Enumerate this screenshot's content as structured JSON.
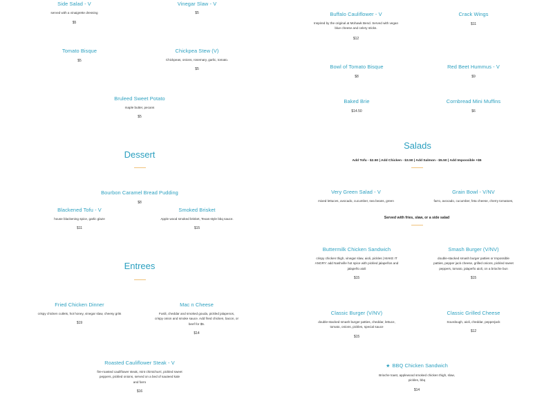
{
  "left_column": [
    {
      "id": "side-salad",
      "name": "Side Salad - V",
      "desc": "served with a vinaigrette dressing",
      "price": "$5"
    },
    {
      "id": "vinegar-slaw",
      "name": "Vinegar Slaw - V",
      "desc": "",
      "price": "$5"
    },
    {
      "id": "tomato-bisque",
      "name": "Tomato Bisque",
      "desc": "",
      "price": "$5"
    },
    {
      "id": "chickpea-stew",
      "name": "Chickpea Stew (V)",
      "desc": "Chickpeas, onions, rosemary, garlic, tomato.",
      "price": "$5"
    },
    {
      "id": "bruleed-sweet-potato",
      "name": "Bruleed Sweet Potato",
      "desc": "maple butter, pecans",
      "price": "$5"
    },
    {
      "id": "bourbon-pudding",
      "name": "Bourbon Caramel Bread Pudding",
      "desc": "",
      "price": "$8"
    },
    {
      "id": "blackened-tofu",
      "name": "Blackened Tofu - V",
      "desc": "house blackening spice, garlic glaze",
      "price": "$11"
    },
    {
      "id": "smoked-brisket",
      "name": "Smoked Brisket",
      "desc": "Apple wood smoked brisket, Texas-style bbq sauce.",
      "price": "$15"
    },
    {
      "id": "fried-chicken-dinner",
      "name": "Fried Chicken Dinner",
      "desc": "crispy chicken cutlets, hot honey, vinegar slaw, cheesy grits",
      "price": "$19"
    },
    {
      "id": "mac-n-cheese",
      "name": "Mac n Cheese",
      "desc": "Fusili, cheddar and smoked gouda, pickled jalapenos, crispy onion and smoke sauce. Add fried chicken, bacon, or beef for $5.",
      "price": "$14"
    },
    {
      "id": "roasted-cauliflower-steak",
      "name": "Roasted Cauliflower Steak - V",
      "desc": "fire-roasted cauliflower steak, mint chimichurri, pickled sweet peppers, pickled onions, served on a bed of sauteed kale and farro",
      "price": "$16"
    }
  ],
  "right_column": [
    {
      "id": "buffalo-cauliflower",
      "name": "Buffalo Cauliflower - V",
      "desc": "Inspired by the original at Mohawk Bend. Served with vegan blue cheese and celery sticks.",
      "price": "$12"
    },
    {
      "id": "crack-wings",
      "name": "Crack Wings",
      "desc": "",
      "price": "$11"
    },
    {
      "id": "bowl-tomato-bisque",
      "name": "Bowl of Tomato Bisque",
      "desc": "",
      "price": "$8"
    },
    {
      "id": "red-beet-hummus",
      "name": "Red Beet Hummus - V",
      "desc": "",
      "price": "$9"
    },
    {
      "id": "baked-brie",
      "name": "Baked Brie",
      "desc": "",
      "price": "$14.50"
    },
    {
      "id": "cornbread-muffins",
      "name": "Cornbread Mini Muffins",
      "desc": "",
      "price": "$6"
    },
    {
      "id": "very-green-salad",
      "name": "Very Green Salad - V",
      "desc": "mixed lettuces, avocado, cucumber, sea beans, green",
      "price": ""
    },
    {
      "id": "grain-bowl",
      "name": "Grain Bowl - V/NV",
      "desc": "farro, avocado, cucumber, feta cheese, cherry tomatoes,",
      "price": ""
    },
    {
      "id": "buttermilk-chicken-sandwich",
      "name": "Buttermilk Chicken Sandwich",
      "desc": "crispy chicken thigh, vinegar slaw, aioli, pickles | MAKE IT ANGRY: add Nashville hot spice with pickled jalapeños and jalapeño aioli",
      "price": "$15"
    },
    {
      "id": "smash-burger",
      "name": "Smash Burger (V/NV)",
      "desc": "double-stacked smash burger patties or Impossible patties, pepper jack cheese, grilled onions, pickled sweet peppers, tomato, jalapeño aioli, on a brioche bun",
      "price": "$15"
    },
    {
      "id": "classic-burger",
      "name": "Classic Burger (V/NV)",
      "desc": "double-stacked smash burger patties, cheddar, lettuce, tomato, onions, pickles, special sauce",
      "price": "$15"
    },
    {
      "id": "classic-grilled-cheese",
      "name": "Classic Grilled Cheese",
      "desc": "Sourdough, aioli, cheddar, pepperjack",
      "price": "$12"
    },
    {
      "id": "bbq-chicken-sandwich",
      "name": "BBQ Chicken Sandwich",
      "desc": "Brioche toast, applewood smoked chicken thigh, slaw, pickles, bbq",
      "price": "$14"
    }
  ],
  "sections": {
    "dessert": "Dessert",
    "entrees": "Entrees",
    "salads": "Salads"
  },
  "salads_addons": "Add Tofu - $2.50 | Add Chicken - $3.50 | Add Salmon - $5.50 | Add Impossible +$5",
  "sandwich_note": "Served with fries, slaw, or a side salad",
  "colors": {
    "accent": "#2a9fbf",
    "rule": "#f0c27a"
  }
}
